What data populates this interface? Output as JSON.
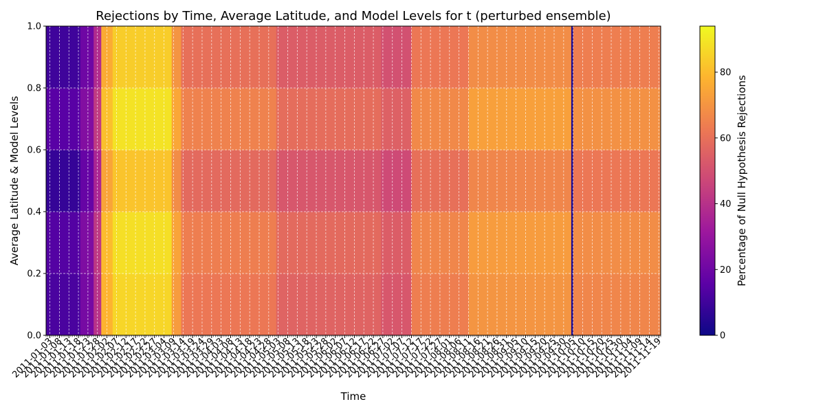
{
  "chart_data": {
    "type": "heatmap",
    "title": "Rejections by Time, Average Latitude, and Model Levels for t (perturbed ensemble)",
    "xlabel": "Time",
    "ylabel": "Average Latitude & Model Levels",
    "colorbar_label": "Percentage of Null Hypothesis Rejections",
    "colormap": "plasma",
    "colormap_stops": [
      "#0d0887",
      "#5c01a6",
      "#9c179e",
      "#cc4778",
      "#ed7953",
      "#fdb42f",
      "#f0f921"
    ],
    "grid": true,
    "ylim": [
      0,
      1
    ],
    "yticks": [
      "0.0",
      "0.2",
      "0.4",
      "0.6",
      "0.8",
      "1.0"
    ],
    "colorbar_range": [
      0,
      94
    ],
    "colorbar_ticks": [
      "0",
      "20",
      "40",
      "60",
      "80"
    ],
    "x_tick_labels": [
      "2011-01-03",
      "2011-01-08",
      "2011-01-13",
      "2011-01-18",
      "2011-01-23",
      "2011-01-28",
      "2011-02-02",
      "2011-02-07",
      "2011-02-12",
      "2011-02-17",
      "2011-02-22",
      "2011-02-27",
      "2011-03-04",
      "2011-03-09",
      "2011-03-14",
      "2011-03-19",
      "2011-03-24",
      "2011-03-29",
      "2011-04-03",
      "2011-04-08",
      "2011-04-13",
      "2011-04-18",
      "2011-04-23",
      "2011-04-28",
      "2011-05-03",
      "2011-05-08",
      "2011-05-13",
      "2011-05-18",
      "2011-05-23",
      "2011-05-28",
      "2011-06-02",
      "2011-06-07",
      "2011-06-12",
      "2011-06-17",
      "2011-06-22",
      "2011-06-27",
      "2011-07-02",
      "2011-07-07",
      "2011-07-12",
      "2011-07-17",
      "2011-07-22",
      "2011-07-27",
      "2011-08-01",
      "2011-08-06",
      "2011-08-11",
      "2011-08-16",
      "2011-08-21",
      "2011-08-26",
      "2011-08-31",
      "2011-09-05",
      "2011-09-10",
      "2011-09-15",
      "2011-09-20",
      "2011-09-25",
      "2011-09-30",
      "2011-10-05",
      "2011-10-10",
      "2011-10-15",
      "2011-10-20",
      "2011-10-25",
      "2011-10-30",
      "2011-11-04",
      "2011-11-09",
      "2011-11-14",
      "2011-11-19"
    ],
    "time_bands": [
      {
        "start": "2011-01-01",
        "end": "2011-01-19",
        "percent": 12
      },
      {
        "start": "2011-01-19",
        "end": "2011-01-26",
        "percent": 22
      },
      {
        "start": "2011-01-26",
        "end": "2011-01-30",
        "percent": 40
      },
      {
        "start": "2011-01-30",
        "end": "2011-02-05",
        "percent": 78
      },
      {
        "start": "2011-02-05",
        "end": "2011-03-08",
        "percent": 86
      },
      {
        "start": "2011-03-08",
        "end": "2011-03-13",
        "percent": 72
      },
      {
        "start": "2011-03-13",
        "end": "2011-05-02",
        "percent": 62
      },
      {
        "start": "2011-05-02",
        "end": "2011-06-26",
        "percent": 56
      },
      {
        "start": "2011-06-26",
        "end": "2011-07-12",
        "percent": 52
      },
      {
        "start": "2011-07-12",
        "end": "2011-08-11",
        "percent": 64
      },
      {
        "start": "2011-08-11",
        "end": "2011-10-04",
        "percent": 70
      },
      {
        "start": "2011-10-04",
        "end": "2011-10-05",
        "percent": 3
      },
      {
        "start": "2011-10-05",
        "end": "2011-11-20",
        "percent": 66
      }
    ],
    "latitude_bands": [
      {
        "range": [
          0.0,
          0.2
        ],
        "offset": 0
      },
      {
        "range": [
          0.2,
          0.4
        ],
        "offset": 2
      },
      {
        "range": [
          0.4,
          0.6
        ],
        "offset": -4
      },
      {
        "range": [
          0.6,
          0.8
        ],
        "offset": 3
      },
      {
        "range": [
          0.8,
          1.0
        ],
        "offset": -2
      }
    ]
  }
}
